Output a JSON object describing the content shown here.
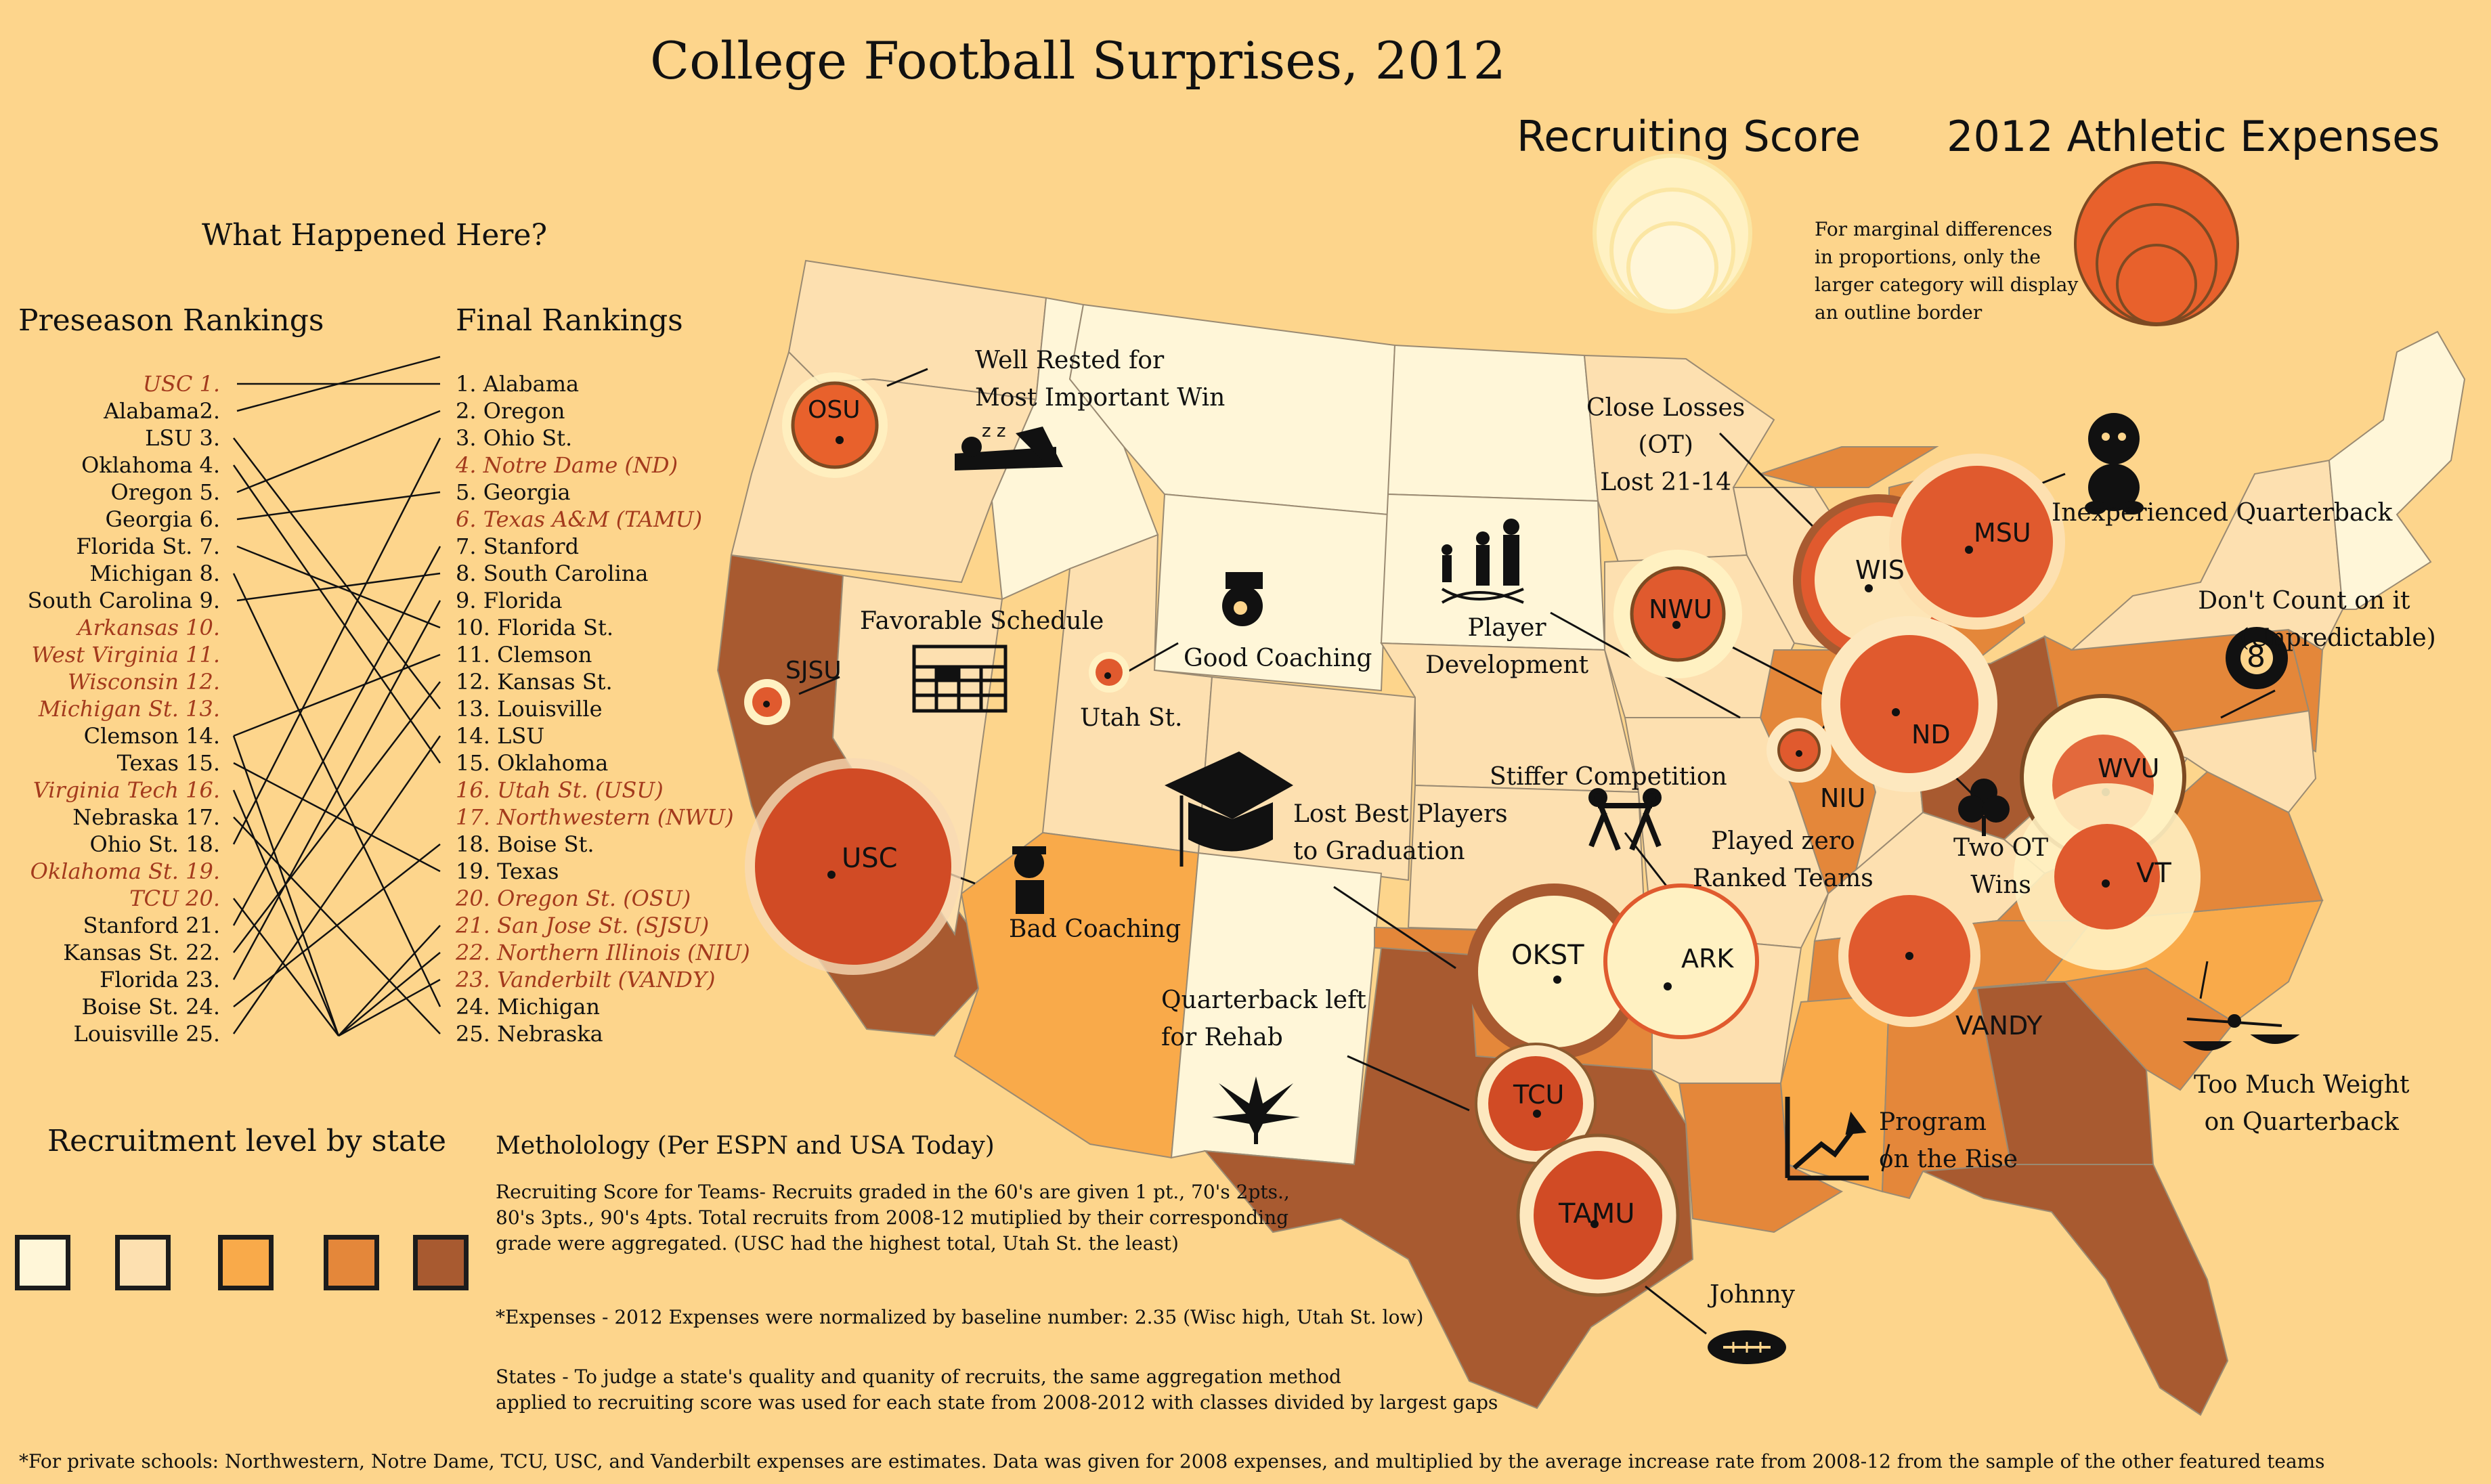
{
  "title": "College Football Surprises, 2012",
  "question": "What Happened Here?",
  "preseason_heading": "Preseason Rankings",
  "final_heading": "Final Rankings",
  "preseason": [
    {
      "text": "USC 1.",
      "highlight": true
    },
    {
      "text": "Alabama2.",
      "highlight": false
    },
    {
      "text": "LSU 3.",
      "highlight": false
    },
    {
      "text": "Oklahoma 4.",
      "highlight": false
    },
    {
      "text": "Oregon 5.",
      "highlight": false
    },
    {
      "text": "Georgia 6.",
      "highlight": false
    },
    {
      "text": "Florida St. 7.",
      "highlight": false
    },
    {
      "text": "Michigan 8.",
      "highlight": false
    },
    {
      "text": "South Carolina 9.",
      "highlight": false
    },
    {
      "text": "Arkansas 10.",
      "highlight": true
    },
    {
      "text": "West Virginia 11.",
      "highlight": true
    },
    {
      "text": "Wisconsin 12.",
      "highlight": true
    },
    {
      "text": "Michigan St. 13.",
      "highlight": true
    },
    {
      "text": "Clemson 14.",
      "highlight": false
    },
    {
      "text": "Texas 15.",
      "highlight": false
    },
    {
      "text": "Virginia Tech 16.",
      "highlight": true
    },
    {
      "text": "Nebraska 17.",
      "highlight": false
    },
    {
      "text": "Ohio St. 18.",
      "highlight": false
    },
    {
      "text": "Oklahoma St. 19.",
      "highlight": true
    },
    {
      "text": "TCU 20.",
      "highlight": true
    },
    {
      "text": "Stanford 21.",
      "highlight": false
    },
    {
      "text": "Kansas St. 22.",
      "highlight": false
    },
    {
      "text": "Florida 23.",
      "highlight": false
    },
    {
      "text": "Boise St. 24.",
      "highlight": false
    },
    {
      "text": "Louisville 25.",
      "highlight": false
    }
  ],
  "final": [
    {
      "text": "1. Alabama",
      "highlight": false
    },
    {
      "text": "2. Oregon",
      "highlight": false
    },
    {
      "text": "3. Ohio St.",
      "highlight": false
    },
    {
      "text": "4. Notre Dame (ND)",
      "highlight": true
    },
    {
      "text": "5. Georgia",
      "highlight": false
    },
    {
      "text": "6. Texas A&M (TAMU)",
      "highlight": true
    },
    {
      "text": "7. Stanford",
      "highlight": false
    },
    {
      "text": "8. South Carolina",
      "highlight": false
    },
    {
      "text": "9. Florida",
      "highlight": false
    },
    {
      "text": "10. Florida St.",
      "highlight": false
    },
    {
      "text": "11. Clemson",
      "highlight": false
    },
    {
      "text": "12. Kansas St.",
      "highlight": false
    },
    {
      "text": "13. Louisville",
      "highlight": false
    },
    {
      "text": "14. LSU",
      "highlight": false
    },
    {
      "text": "15. Oklahoma",
      "highlight": false
    },
    {
      "text": "16. Utah St. (USU)",
      "highlight": true
    },
    {
      "text": "17. Northwestern (NWU)",
      "highlight": true
    },
    {
      "text": "18. Boise St.",
      "highlight": false
    },
    {
      "text": "19. Texas",
      "highlight": false
    },
    {
      "text": "20. Oregon St. (OSU)",
      "highlight": true
    },
    {
      "text": "21. San Jose St. (SJSU)",
      "highlight": true
    },
    {
      "text": "22. Northern Illinois (NIU)",
      "highlight": true
    },
    {
      "text": "23. Vanderbilt (VANDY)",
      "highlight": true
    },
    {
      "text": "24. Michigan",
      "highlight": false
    },
    {
      "text": "25. Nebraska",
      "highlight": false
    }
  ],
  "legend": {
    "recruiting_title": "Recruiting Score",
    "expenses_title": "2012 Athletic Expenses",
    "note_lines": [
      "For marginal differences",
      "in proportions, only the",
      "larger category will display",
      "an outline border"
    ],
    "state_title": "Recruitment level by state",
    "state_levels": [
      {
        "level": 1,
        "color": "#fff6d8"
      },
      {
        "level": 2,
        "color": "#fde0b0"
      },
      {
        "level": 3,
        "color": "#f9aa4a"
      },
      {
        "level": 4,
        "color": "#e4873a"
      },
      {
        "level": 5,
        "color": "#a85a30"
      }
    ]
  },
  "colors": {
    "background": "#fdd58c",
    "recruiting_fill": "#fff0c0",
    "expenses_fill": "#e05a2e",
    "expenses_dark": "#cf4d25",
    "outline": "#8c5a2e",
    "highlight_text": "#a33a1d"
  },
  "teams": [
    {
      "code": "OSU",
      "recruiting_level": "small",
      "expense_level": "medium"
    },
    {
      "code": "SJSU",
      "recruiting_level": "small",
      "expense_level": "small"
    },
    {
      "code": "USC",
      "recruiting_level": "large",
      "expense_level": "large"
    },
    {
      "code": "Utah St.",
      "recruiting_level": "small",
      "expense_level": "small"
    },
    {
      "code": "NWU",
      "recruiting_level": "medium",
      "expense_level": "medium"
    },
    {
      "code": "WIS",
      "recruiting_level": "medium",
      "expense_level": "large"
    },
    {
      "code": "MSU",
      "recruiting_level": "medium",
      "expense_level": "large"
    },
    {
      "code": "ND",
      "recruiting_level": "large",
      "expense_level": "large"
    },
    {
      "code": "NIU",
      "recruiting_level": "small",
      "expense_level": "small"
    },
    {
      "code": "WVU",
      "recruiting_level": "large",
      "expense_level": "medium"
    },
    {
      "code": "VT",
      "recruiting_level": "large",
      "expense_level": "medium"
    },
    {
      "code": "OKST",
      "recruiting_level": "large",
      "expense_level": "large"
    },
    {
      "code": "ARK",
      "recruiting_level": "large",
      "expense_level": "medium"
    },
    {
      "code": "TCU",
      "recruiting_level": "medium",
      "expense_level": "medium"
    },
    {
      "code": "TAMU",
      "recruiting_level": "large",
      "expense_level": "large"
    },
    {
      "code": "VANDY",
      "recruiting_level": "medium",
      "expense_level": "large"
    }
  ],
  "annotations": {
    "well_rested": [
      "Well Rested for",
      "Most Important Win"
    ],
    "favorable_schedule": "Favorable Schedule",
    "good_coaching": "Good Coaching",
    "player_development": [
      "Player",
      "Development"
    ],
    "close_losses": [
      "Close Losses",
      "(OT)",
      "Lost 21-14"
    ],
    "inexperienced_qb": "Inexperienced Quarterback",
    "dont_count": [
      "Don't Count on it",
      "(Unpredictable)"
    ],
    "stiffer_competition": "Stiffer Competition",
    "lost_best": [
      "Lost Best Players",
      "to Graduation"
    ],
    "played_zero": [
      "Played zero",
      "Ranked Teams"
    ],
    "two_ot": [
      "Two OT",
      "Wins"
    ],
    "bad_coaching": "Bad Coaching",
    "qb_rehab": [
      "Quarterback left",
      "for Rehab"
    ],
    "program_rise": [
      "Program",
      "on the Rise"
    ],
    "too_much_weight": [
      "Too Much Weight",
      "on Quarterback"
    ],
    "johnny": "Johnny",
    "eight_ball": "8"
  },
  "methodology": {
    "heading": "Metholology (Per ESPN and USA Today)",
    "recruiting": [
      "Recruiting Score for Teams- Recruits graded in the 60's are given 1 pt., 70's 2pts.,",
      " 80's 3pts., 90's 4pts. Total recruits from 2008-12 mutiplied by their corresponding",
      "grade were aggregated. (USC had the highest total, Utah St. the least)"
    ],
    "expenses": "*Expenses - 2012 Expenses were normalized by baseline number: 2.35 (Wisc high, Utah St. low)",
    "states": [
      "States - To judge a state's quality and quanity of recruits, the same aggregation method",
      "applied to recruiting score was used for each state from 2008-2012 with classes divided by largest gaps"
    ]
  },
  "footnote": "*For private schools: Northwestern, Notre Dame, TCU, USC, and Vanderbilt expenses are estimates. Data was given for 2008 expenses, and multiplied by the average increase rate from 2008-12 from the sample of the other featured teams"
}
